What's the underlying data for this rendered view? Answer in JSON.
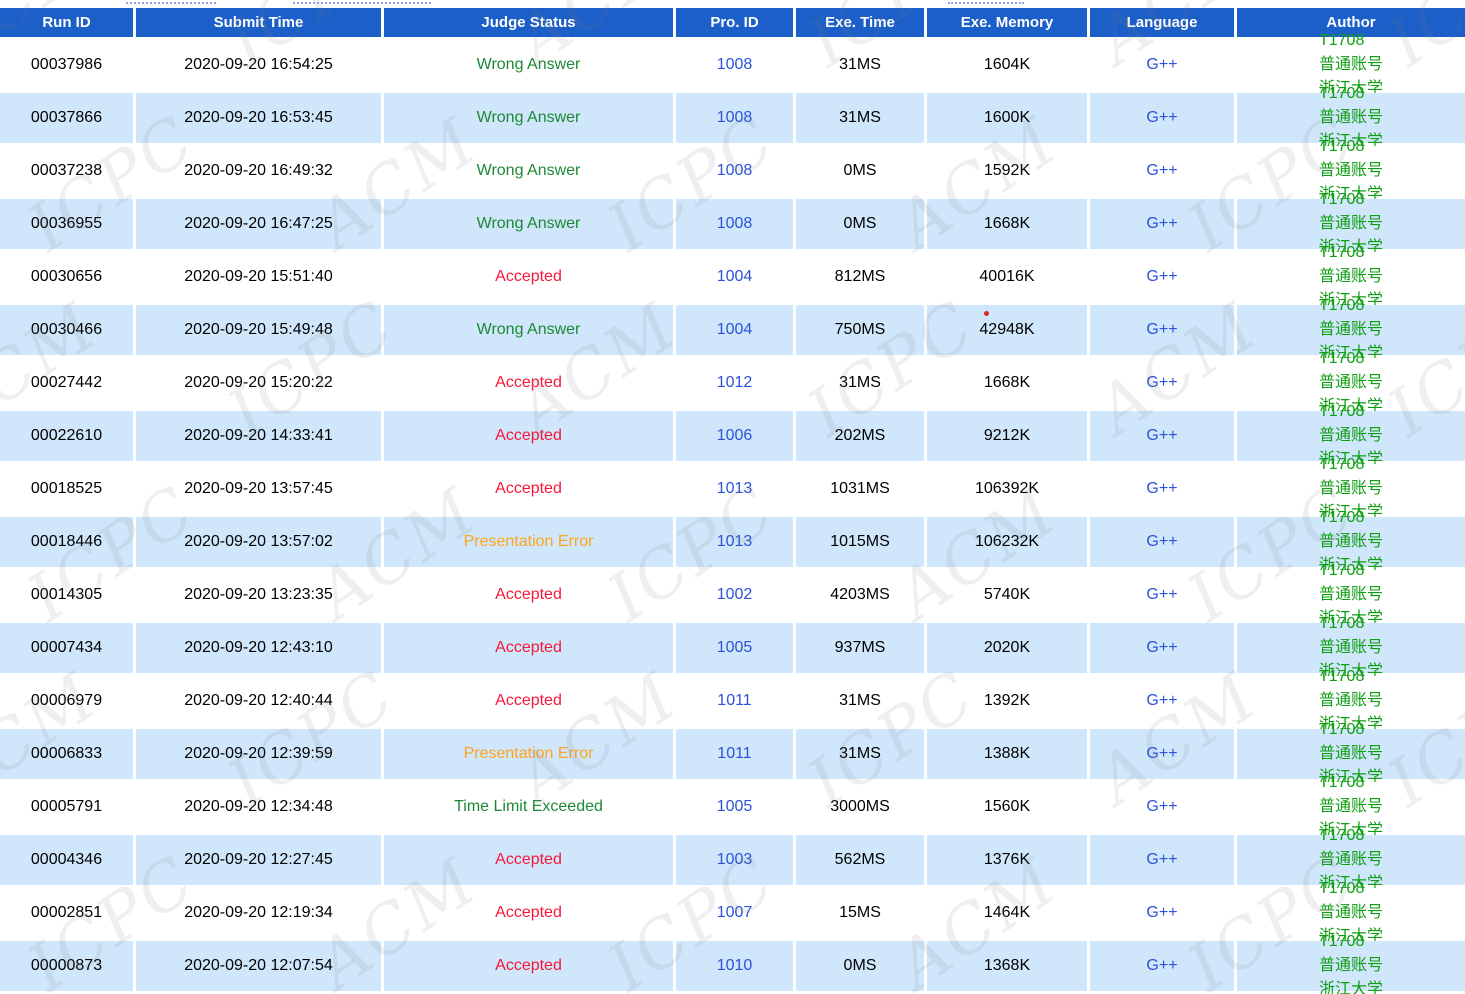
{
  "watermark": {
    "texts": [
      "ACM",
      "ICPC"
    ]
  },
  "colors": {
    "header_bg": "#1c5fc9",
    "alt_row_bg": "#cfe6fb",
    "link": "#2b52d9",
    "author": "#0f9f13",
    "dot": "#e32424",
    "status": {
      "Accepted": "#f71838",
      "Wrong Answer": "#1d8836",
      "Presentation Error": "#ffa41e",
      "Time Limit Exceeded": "#1d8836"
    }
  },
  "table": {
    "headers": [
      {
        "key": "run_id",
        "label": "Run ID"
      },
      {
        "key": "submit_time",
        "label": "Submit Time"
      },
      {
        "key": "status",
        "label": "Judge Status"
      },
      {
        "key": "pro_id",
        "label": "Pro. ID"
      },
      {
        "key": "exe_time",
        "label": "Exe. Time"
      },
      {
        "key": "exe_memory",
        "label": "Exe. Memory"
      },
      {
        "key": "language",
        "label": "Language"
      },
      {
        "key": "author",
        "label": "Author"
      }
    ],
    "rows": [
      {
        "run_id": "00037986",
        "submit_time": "2020-09-20 16:54:25",
        "status": "Wrong Answer",
        "pro_id": "1008",
        "exe_time": "31MS",
        "exe_memory": "1604K",
        "memory_dot": false,
        "language": "G++",
        "author": {
          "user_id": "T1708",
          "account_type": "普通账号",
          "school": "浙江大学"
        }
      },
      {
        "run_id": "00037866",
        "submit_time": "2020-09-20 16:53:45",
        "status": "Wrong Answer",
        "pro_id": "1008",
        "exe_time": "31MS",
        "exe_memory": "1600K",
        "memory_dot": false,
        "language": "G++",
        "author": {
          "user_id": "T1708",
          "account_type": "普通账号",
          "school": "浙江大学"
        }
      },
      {
        "run_id": "00037238",
        "submit_time": "2020-09-20 16:49:32",
        "status": "Wrong Answer",
        "pro_id": "1008",
        "exe_time": "0MS",
        "exe_memory": "1592K",
        "memory_dot": false,
        "language": "G++",
        "author": {
          "user_id": "T1708",
          "account_type": "普通账号",
          "school": "浙江大学"
        }
      },
      {
        "run_id": "00036955",
        "submit_time": "2020-09-20 16:47:25",
        "status": "Wrong Answer",
        "pro_id": "1008",
        "exe_time": "0MS",
        "exe_memory": "1668K",
        "memory_dot": false,
        "language": "G++",
        "author": {
          "user_id": "T1708",
          "account_type": "普通账号",
          "school": "浙江大学"
        }
      },
      {
        "run_id": "00030656",
        "submit_time": "2020-09-20 15:51:40",
        "status": "Accepted",
        "pro_id": "1004",
        "exe_time": "812MS",
        "exe_memory": "40016K",
        "memory_dot": false,
        "language": "G++",
        "author": {
          "user_id": "T1708",
          "account_type": "普通账号",
          "school": "浙江大学"
        }
      },
      {
        "run_id": "00030466",
        "submit_time": "2020-09-20 15:49:48",
        "status": "Wrong Answer",
        "pro_id": "1004",
        "exe_time": "750MS",
        "exe_memory": "42948K",
        "memory_dot": true,
        "language": "G++",
        "author": {
          "user_id": "T1708",
          "account_type": "普通账号",
          "school": "浙江大学"
        }
      },
      {
        "run_id": "00027442",
        "submit_time": "2020-09-20 15:20:22",
        "status": "Accepted",
        "pro_id": "1012",
        "exe_time": "31MS",
        "exe_memory": "1668K",
        "memory_dot": false,
        "language": "G++",
        "author": {
          "user_id": "T1708",
          "account_type": "普通账号",
          "school": "浙江大学"
        }
      },
      {
        "run_id": "00022610",
        "submit_time": "2020-09-20 14:33:41",
        "status": "Accepted",
        "pro_id": "1006",
        "exe_time": "202MS",
        "exe_memory": "9212K",
        "memory_dot": false,
        "language": "G++",
        "author": {
          "user_id": "T1708",
          "account_type": "普通账号",
          "school": "浙江大学"
        }
      },
      {
        "run_id": "00018525",
        "submit_time": "2020-09-20 13:57:45",
        "status": "Accepted",
        "pro_id": "1013",
        "exe_time": "1031MS",
        "exe_memory": "106392K",
        "memory_dot": false,
        "language": "G++",
        "author": {
          "user_id": "T1708",
          "account_type": "普通账号",
          "school": "浙江大学"
        }
      },
      {
        "run_id": "00018446",
        "submit_time": "2020-09-20 13:57:02",
        "status": "Presentation Error",
        "pro_id": "1013",
        "exe_time": "1015MS",
        "exe_memory": "106232K",
        "memory_dot": false,
        "language": "G++",
        "author": {
          "user_id": "T1708",
          "account_type": "普通账号",
          "school": "浙江大学"
        }
      },
      {
        "run_id": "00014305",
        "submit_time": "2020-09-20 13:23:35",
        "status": "Accepted",
        "pro_id": "1002",
        "exe_time": "4203MS",
        "exe_memory": "5740K",
        "memory_dot": false,
        "language": "G++",
        "author": {
          "user_id": "T1708",
          "account_type": "普通账号",
          "school": "浙江大学"
        }
      },
      {
        "run_id": "00007434",
        "submit_time": "2020-09-20 12:43:10",
        "status": "Accepted",
        "pro_id": "1005",
        "exe_time": "937MS",
        "exe_memory": "2020K",
        "memory_dot": false,
        "language": "G++",
        "author": {
          "user_id": "T1708",
          "account_type": "普通账号",
          "school": "浙江大学"
        }
      },
      {
        "run_id": "00006979",
        "submit_time": "2020-09-20 12:40:44",
        "status": "Accepted",
        "pro_id": "1011",
        "exe_time": "31MS",
        "exe_memory": "1392K",
        "memory_dot": false,
        "language": "G++",
        "author": {
          "user_id": "T1708",
          "account_type": "普通账号",
          "school": "浙江大学"
        }
      },
      {
        "run_id": "00006833",
        "submit_time": "2020-09-20 12:39:59",
        "status": "Presentation Error",
        "pro_id": "1011",
        "exe_time": "31MS",
        "exe_memory": "1388K",
        "memory_dot": false,
        "language": "G++",
        "author": {
          "user_id": "T1708",
          "account_type": "普通账号",
          "school": "浙江大学"
        }
      },
      {
        "run_id": "00005791",
        "submit_time": "2020-09-20 12:34:48",
        "status": "Time Limit Exceeded",
        "pro_id": "1005",
        "exe_time": "3000MS",
        "exe_memory": "1560K",
        "memory_dot": false,
        "language": "G++",
        "author": {
          "user_id": "T1708",
          "account_type": "普通账号",
          "school": "浙江大学"
        }
      },
      {
        "run_id": "00004346",
        "submit_time": "2020-09-20 12:27:45",
        "status": "Accepted",
        "pro_id": "1003",
        "exe_time": "562MS",
        "exe_memory": "1376K",
        "memory_dot": false,
        "language": "G++",
        "author": {
          "user_id": "T1708",
          "account_type": "普通账号",
          "school": "浙江大学"
        }
      },
      {
        "run_id": "00002851",
        "submit_time": "2020-09-20 12:19:34",
        "status": "Accepted",
        "pro_id": "1007",
        "exe_time": "15MS",
        "exe_memory": "1464K",
        "memory_dot": false,
        "language": "G++",
        "author": {
          "user_id": "T1708",
          "account_type": "普通账号",
          "school": "浙江大学"
        }
      },
      {
        "run_id": "00000873",
        "submit_time": "2020-09-20 12:07:54",
        "status": "Accepted",
        "pro_id": "1010",
        "exe_time": "0MS",
        "exe_memory": "1368K",
        "memory_dot": false,
        "language": "G++",
        "author": {
          "user_id": "T1708",
          "account_type": "普通账号",
          "school": "浙江大学"
        }
      }
    ]
  }
}
